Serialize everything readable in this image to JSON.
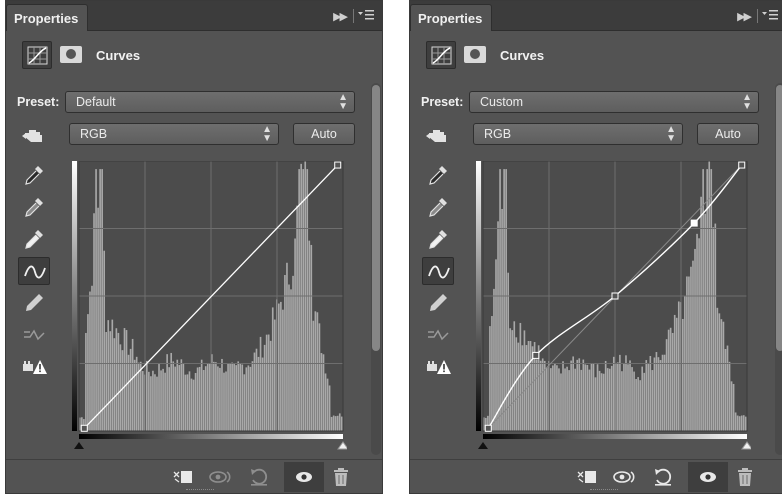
{
  "panels": [
    {
      "tab_label": "Properties",
      "adjustment_title": "Curves",
      "preset_label": "Preset:",
      "preset_value": "Default",
      "channel_value": "RGB",
      "auto_label": "Auto",
      "curve": "straight"
    },
    {
      "tab_label": "Properties",
      "adjustment_title": "Curves",
      "preset_label": "Preset:",
      "preset_value": "Custom",
      "channel_value": "RGB",
      "auto_label": "Auto",
      "curve": "s-curve"
    }
  ],
  "colors": {
    "panel_bg": "#535353",
    "graph_bg": "#4c4c4c",
    "histogram": "#a9a9a9",
    "curve_line": "#ffffff"
  },
  "icons": {
    "tools": [
      "target-adjust-hand-icon",
      "black-point-eyedropper-icon",
      "gray-point-eyedropper-icon",
      "white-point-eyedropper-icon",
      "curve-points-icon",
      "pencil-draw-icon",
      "smooth-curve-icon",
      "clipping-warning-icon"
    ],
    "bottom": [
      "clip-to-layer-icon",
      "view-previous-icon",
      "reset-icon",
      "visibility-eye-icon",
      "delete-trash-icon"
    ]
  }
}
